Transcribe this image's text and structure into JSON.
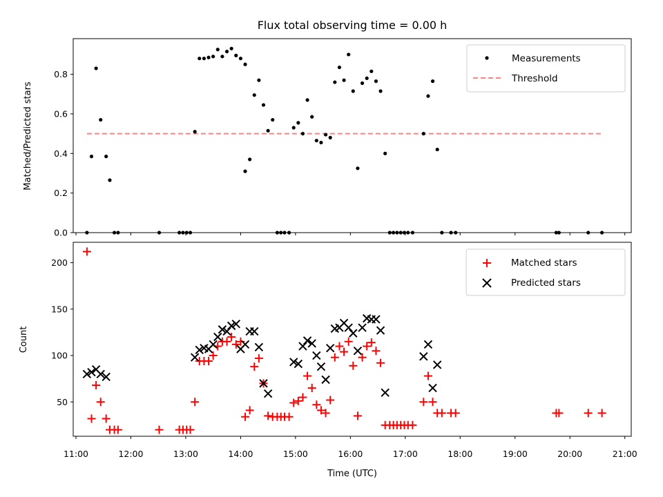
{
  "chart_data": [
    {
      "type": "scatter",
      "title": "Flux total observing time = 0.00 h",
      "xlabel": "",
      "ylabel": "Matched/Predicted stars",
      "xlim": [
        "10:57",
        "21:07"
      ],
      "ylim": [
        0,
        0.98
      ],
      "yticks": [
        "0.0",
        "0.2",
        "0.4",
        "0.6",
        "0.8"
      ],
      "legend_position": "upper right",
      "series": [
        {
          "name": "Measurements",
          "marker": "dot",
          "color": "#000000",
          "points": [
            [
              "11:12",
              0.0
            ],
            [
              "11:17",
              0.385
            ],
            [
              "11:22",
              0.83
            ],
            [
              "11:27",
              0.57
            ],
            [
              "11:33",
              0.385
            ],
            [
              "11:37",
              0.265
            ],
            [
              "11:42",
              0.0
            ],
            [
              "11:46",
              0.0
            ],
            [
              "12:31",
              0.0
            ],
            [
              "12:53",
              0.0
            ],
            [
              "12:57",
              0.0
            ],
            [
              "13:01",
              0.0
            ],
            [
              "13:05",
              0.0
            ],
            [
              "13:10",
              0.51
            ],
            [
              "13:15",
              0.88
            ],
            [
              "13:20",
              0.88
            ],
            [
              "13:25",
              0.885
            ],
            [
              "13:30",
              0.89
            ],
            [
              "13:35",
              0.925
            ],
            [
              "13:40",
              0.89
            ],
            [
              "13:45",
              0.915
            ],
            [
              "13:50",
              0.93
            ],
            [
              "13:55",
              0.895
            ],
            [
              "14:00",
              0.88
            ],
            [
              "14:05",
              0.85
            ],
            [
              "14:05",
              0.31
            ],
            [
              "14:10",
              0.37
            ],
            [
              "14:15",
              0.695
            ],
            [
              "14:20",
              0.77
            ],
            [
              "14:25",
              0.645
            ],
            [
              "14:30",
              0.515
            ],
            [
              "14:35",
              0.57
            ],
            [
              "14:40",
              0.0
            ],
            [
              "14:44",
              0.0
            ],
            [
              "14:48",
              0.0
            ],
            [
              "14:53",
              0.0
            ],
            [
              "14:58",
              0.53
            ],
            [
              "15:03",
              0.555
            ],
            [
              "15:08",
              0.5
            ],
            [
              "15:13",
              0.67
            ],
            [
              "15:18",
              0.585
            ],
            [
              "15:23",
              0.465
            ],
            [
              "15:28",
              0.455
            ],
            [
              "15:33",
              0.495
            ],
            [
              "15:38",
              0.48
            ],
            [
              "15:43",
              0.76
            ],
            [
              "15:48",
              0.835
            ],
            [
              "15:53",
              0.77
            ],
            [
              "15:58",
              0.9
            ],
            [
              "16:03",
              0.715
            ],
            [
              "16:08",
              0.325
            ],
            [
              "16:13",
              0.755
            ],
            [
              "16:18",
              0.78
            ],
            [
              "16:23",
              0.815
            ],
            [
              "16:28",
              0.765
            ],
            [
              "16:33",
              0.715
            ],
            [
              "16:38",
              0.4
            ],
            [
              "16:43",
              0.0
            ],
            [
              "16:47",
              0.0
            ],
            [
              "16:51",
              0.0
            ],
            [
              "16:55",
              0.0
            ],
            [
              "16:59",
              0.0
            ],
            [
              "17:03",
              0.0
            ],
            [
              "17:08",
              0.0
            ],
            [
              "17:20",
              0.5
            ],
            [
              "17:25",
              0.69
            ],
            [
              "17:30",
              0.765
            ],
            [
              "17:35",
              0.42
            ],
            [
              "17:40",
              0.0
            ],
            [
              "17:50",
              0.0
            ],
            [
              "17:55",
              0.0
            ],
            [
              "19:45",
              0.0
            ],
            [
              "19:48",
              0.0
            ],
            [
              "20:20",
              0.0
            ],
            [
              "20:35",
              0.0
            ]
          ]
        },
        {
          "name": "Threshold",
          "type": "line",
          "style": "dashed",
          "color": "#ff8080",
          "points": [
            [
              "11:12",
              0.5
            ],
            [
              "20:35",
              0.5
            ]
          ]
        }
      ]
    },
    {
      "type": "scatter",
      "title": "",
      "xlabel": "Time (UTC)",
      "ylabel": "Count",
      "xlim": [
        "10:57",
        "21:07"
      ],
      "ylim": [
        13,
        222
      ],
      "yticks": [
        "50",
        "100",
        "150",
        "200"
      ],
      "xticks": [
        "11:00",
        "12:00",
        "13:00",
        "14:00",
        "15:00",
        "16:00",
        "17:00",
        "18:00",
        "19:00",
        "20:00",
        "21:00"
      ],
      "legend_position": "upper right",
      "series": [
        {
          "name": "Matched stars",
          "marker": "plus",
          "color": "#ff0000",
          "points": [
            [
              "11:12",
              212
            ],
            [
              "11:17",
              32
            ],
            [
              "11:22",
              68
            ],
            [
              "11:27",
              50
            ],
            [
              "11:33",
              32
            ],
            [
              "11:37",
              20
            ],
            [
              "11:42",
              20
            ],
            [
              "11:46",
              20
            ],
            [
              "12:31",
              20
            ],
            [
              "12:53",
              20
            ],
            [
              "12:57",
              20
            ],
            [
              "13:01",
              20
            ],
            [
              "13:05",
              20
            ],
            [
              "13:10",
              50
            ],
            [
              "13:15",
              94
            ],
            [
              "13:20",
              94
            ],
            [
              "13:25",
              94
            ],
            [
              "13:30",
              100
            ],
            [
              "13:35",
              110
            ],
            [
              "13:40",
              115
            ],
            [
              "13:45",
              115
            ],
            [
              "13:50",
              120
            ],
            [
              "13:55",
              112
            ],
            [
              "14:00",
              115
            ],
            [
              "14:05",
              34
            ],
            [
              "14:10",
              41
            ],
            [
              "14:15",
              88
            ],
            [
              "14:20",
              97
            ],
            [
              "14:25",
              70
            ],
            [
              "14:30",
              35
            ],
            [
              "14:35",
              34
            ],
            [
              "14:40",
              34
            ],
            [
              "14:44",
              34
            ],
            [
              "14:48",
              34
            ],
            [
              "14:53",
              34
            ],
            [
              "14:58",
              49
            ],
            [
              "15:03",
              51
            ],
            [
              "15:08",
              55
            ],
            [
              "15:13",
              78
            ],
            [
              "15:18",
              65
            ],
            [
              "15:23",
              47
            ],
            [
              "15:28",
              41
            ],
            [
              "15:33",
              38
            ],
            [
              "15:38",
              52
            ],
            [
              "15:43",
              98
            ],
            [
              "15:48",
              110
            ],
            [
              "15:53",
              104
            ],
            [
              "15:58",
              115
            ],
            [
              "16:03",
              89
            ],
            [
              "16:08",
              35
            ],
            [
              "16:13",
              98
            ],
            [
              "16:18",
              110
            ],
            [
              "16:23",
              114
            ],
            [
              "16:28",
              105
            ],
            [
              "16:33",
              92
            ],
            [
              "16:38",
              25
            ],
            [
              "16:43",
              25
            ],
            [
              "16:47",
              25
            ],
            [
              "16:51",
              25
            ],
            [
              "16:55",
              25
            ],
            [
              "16:59",
              25
            ],
            [
              "17:03",
              25
            ],
            [
              "17:08",
              25
            ],
            [
              "17:20",
              50
            ],
            [
              "17:25",
              78
            ],
            [
              "17:30",
              50
            ],
            [
              "17:35",
              38
            ],
            [
              "17:40",
              38
            ],
            [
              "17:50",
              38
            ],
            [
              "17:55",
              38
            ],
            [
              "19:45",
              38
            ],
            [
              "19:48",
              38
            ],
            [
              "20:20",
              38
            ],
            [
              "20:35",
              38
            ]
          ]
        },
        {
          "name": "Predicted stars",
          "marker": "x",
          "color": "#000000",
          "points": [
            [
              "11:12",
              80
            ],
            [
              "11:17",
              82
            ],
            [
              "11:22",
              85
            ],
            [
              "11:27",
              80
            ],
            [
              "11:33",
              77
            ],
            [
              "13:10",
              98
            ],
            [
              "13:15",
              106
            ],
            [
              "13:20",
              108
            ],
            [
              "13:25",
              107
            ],
            [
              "13:30",
              112
            ],
            [
              "13:35",
              120
            ],
            [
              "13:40",
              128
            ],
            [
              "13:45",
              126
            ],
            [
              "13:50",
              132
            ],
            [
              "13:55",
              134
            ],
            [
              "14:00",
              107
            ],
            [
              "14:05",
              112
            ],
            [
              "14:10",
              126
            ],
            [
              "14:15",
              126
            ],
            [
              "14:20",
              109
            ],
            [
              "14:25",
              70
            ],
            [
              "14:30",
              59
            ],
            [
              "14:58",
              93
            ],
            [
              "15:03",
              91
            ],
            [
              "15:08",
              110
            ],
            [
              "15:13",
              116
            ],
            [
              "15:18",
              113
            ],
            [
              "15:23",
              100
            ],
            [
              "15:28",
              88
            ],
            [
              "15:33",
              74
            ],
            [
              "15:38",
              108
            ],
            [
              "15:43",
              129
            ],
            [
              "15:48",
              130
            ],
            [
              "15:53",
              135
            ],
            [
              "15:58",
              130
            ],
            [
              "16:03",
              124
            ],
            [
              "16:08",
              105
            ],
            [
              "16:13",
              130
            ],
            [
              "16:18",
              140
            ],
            [
              "16:23",
              139
            ],
            [
              "16:28",
              139
            ],
            [
              "16:33",
              127
            ],
            [
              "16:38",
              60
            ],
            [
              "17:20",
              99
            ],
            [
              "17:25",
              112
            ],
            [
              "17:30",
              65
            ],
            [
              "17:35",
              90
            ]
          ]
        }
      ]
    }
  ]
}
